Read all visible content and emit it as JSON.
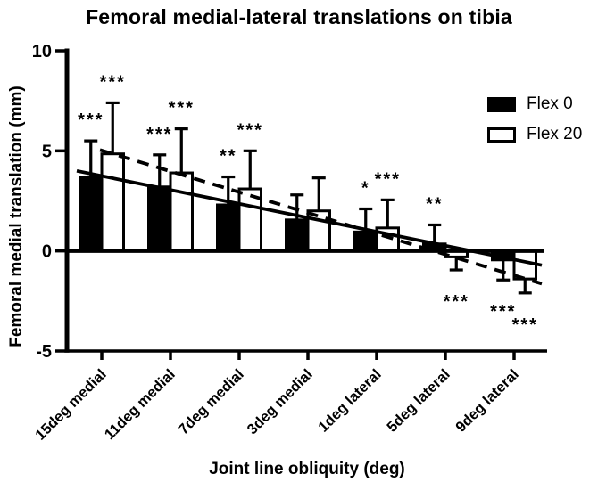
{
  "chart_data": {
    "type": "bar",
    "title": "Femoral medial-lateral translations on tibia",
    "xlabel": "Joint line obliquity (deg)",
    "ylabel": "Femoral medial translation (mm)",
    "categories": [
      "15deg medial",
      "11deg medial",
      "7deg medial",
      "3deg medial",
      "1deg lateral",
      "5deg lateral",
      "9deg lateral"
    ],
    "yticks": [
      10,
      5,
      0,
      -5
    ],
    "ylim": [
      -5,
      10
    ],
    "grid": false,
    "legend_position": "upper right",
    "ink_color": "#000000",
    "background_color": "#ffffff",
    "annotation_glyph": "*",
    "series": [
      {
        "name": "Flex 0",
        "fill": "#000000",
        "trend_line": "solid",
        "values": [
          3.7,
          3.2,
          2.3,
          1.55,
          0.95,
          0.35,
          -0.45
        ],
        "errors": [
          1.8,
          1.6,
          1.4,
          1.25,
          1.15,
          0.95,
          1.0
        ],
        "significance": [
          "***",
          "***",
          "**",
          "",
          "*",
          "**",
          "***"
        ]
      },
      {
        "name": "Flex 20",
        "fill": "#ffffff",
        "trend_line": "dashed",
        "values": [
          4.85,
          3.9,
          3.1,
          2.0,
          1.15,
          -0.3,
          -1.4
        ],
        "errors": [
          2.55,
          2.2,
          1.9,
          1.65,
          1.4,
          0.65,
          0.7
        ],
        "significance": [
          "***",
          "***",
          "***",
          "",
          "***",
          "***",
          "***"
        ]
      }
    ]
  }
}
